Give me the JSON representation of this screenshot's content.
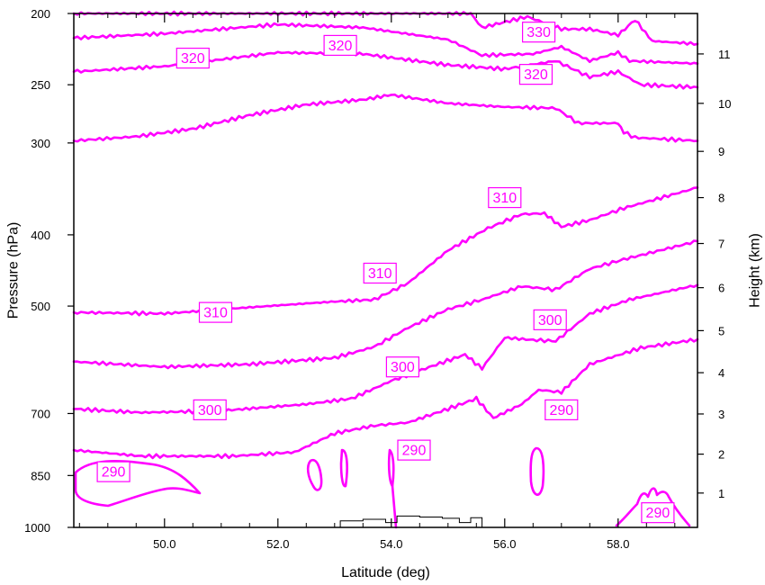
{
  "chart_data": {
    "type": "line",
    "subtype": "contour-cross-section",
    "xlabel": "Latitude (deg)",
    "ylabel": "Pressure (hPa)",
    "y2label": "Height (km)",
    "xlim": [
      48.4,
      59.4
    ],
    "ylim": [
      1000,
      200
    ],
    "yscale": "log",
    "x_ticks": [
      "50.0",
      "52.0",
      "54.0",
      "56.0",
      "58.0"
    ],
    "x_tick_values": [
      50,
      52,
      54,
      56,
      58
    ],
    "y_ticks": [
      "200",
      "250",
      "300",
      "400",
      "500",
      "700",
      "850",
      "1000"
    ],
    "y_tick_values": [
      200,
      250,
      300,
      400,
      500,
      700,
      850,
      1000
    ],
    "y2_ticks": [
      "1",
      "2",
      "3",
      "4",
      "5",
      "6",
      "7",
      "8",
      "9",
      "10",
      "11"
    ],
    "y2_tick_pressures": [
      898,
      795,
      701,
      616,
      540,
      472,
      411,
      356,
      308,
      265,
      227
    ],
    "grid": false,
    "color": "#ff00ff",
    "series": [
      {
        "values": [
          [
            48.4,
            200
          ],
          [
            52,
            200
          ],
          [
            55.4,
            200
          ],
          [
            55.6,
            209
          ],
          [
            56.4,
            202
          ],
          [
            57,
            210
          ],
          [
            57.5,
            210
          ],
          [
            58,
            214
          ],
          [
            58.3,
            204
          ],
          [
            58.6,
            218
          ],
          [
            59.4,
            220
          ]
        ]
      },
      {
        "values": [
          [
            48.4,
            216
          ],
          [
            50,
            213
          ],
          [
            52,
            207
          ],
          [
            53.5,
            209
          ],
          [
            55,
            217
          ],
          [
            55.6,
            228
          ],
          [
            56.5,
            227
          ],
          [
            57,
            222
          ],
          [
            57.5,
            232
          ],
          [
            58,
            226
          ],
          [
            58.2,
            232
          ],
          [
            59.4,
            234
          ]
        ]
      },
      {
        "values": [
          [
            48.4,
            240
          ],
          [
            50,
            236
          ],
          [
            52,
            226
          ],
          [
            53.5,
            227
          ],
          [
            55,
            235
          ],
          [
            56,
            238
          ],
          [
            56.9,
            232
          ],
          [
            57.5,
            244
          ],
          [
            58,
            240
          ],
          [
            58.4,
            250
          ],
          [
            59.4,
            252
          ]
        ]
      },
      {
        "values": [
          [
            48.4,
            298
          ],
          [
            49.5,
            294
          ],
          [
            50.5,
            287
          ],
          [
            51.5,
            275
          ],
          [
            52.5,
            266
          ],
          [
            53.5,
            262
          ],
          [
            54,
            258
          ],
          [
            55,
            265
          ],
          [
            56,
            268
          ],
          [
            56.9,
            269
          ],
          [
            57.3,
            282
          ],
          [
            58,
            282
          ],
          [
            58.1,
            290
          ],
          [
            58.3,
            295
          ],
          [
            59.4,
            298
          ]
        ]
      },
      {
        "values": [
          [
            48.4,
            510
          ],
          [
            50,
            512
          ],
          [
            51.5,
            502
          ],
          [
            53,
            493
          ],
          [
            53.7,
            490
          ],
          [
            54.3,
            465
          ],
          [
            55,
            420
          ],
          [
            55.7,
            392
          ],
          [
            56.3,
            375
          ],
          [
            56.7,
            374
          ],
          [
            57,
            390
          ],
          [
            57.5,
            382
          ],
          [
            58.1,
            368
          ],
          [
            59.4,
            345
          ]
        ]
      },
      {
        "values": [
          [
            48.4,
            595
          ],
          [
            50,
            605
          ],
          [
            51.5,
            600
          ],
          [
            53,
            588
          ],
          [
            53.7,
            568
          ],
          [
            54.3,
            535
          ],
          [
            55,
            505
          ],
          [
            55.6,
            490
          ],
          [
            56.3,
            470
          ],
          [
            56.9,
            475
          ],
          [
            57.5,
            445
          ],
          [
            58.1,
            432
          ],
          [
            59.4,
            408
          ]
        ]
      },
      {
        "values": [
          [
            48.4,
            690
          ],
          [
            49.6,
            698
          ],
          [
            51,
            694
          ],
          [
            52.5,
            680
          ],
          [
            53.3,
            668
          ],
          [
            54,
            632
          ],
          [
            54.6,
            608
          ],
          [
            55.3,
            582
          ],
          [
            55.6,
            608
          ],
          [
            56,
            552
          ],
          [
            56.5,
            556
          ],
          [
            56.9,
            558
          ],
          [
            57.5,
            512
          ],
          [
            58.2,
            490
          ],
          [
            59.4,
            468
          ]
        ]
      },
      {
        "values": [
          [
            48.4,
            785
          ],
          [
            49.6,
            800
          ],
          [
            51.2,
            800
          ],
          [
            52.3,
            790
          ],
          [
            53,
            745
          ],
          [
            53.7,
            727
          ],
          [
            54.3,
            720
          ],
          [
            55,
            690
          ],
          [
            55.5,
            668
          ],
          [
            55.8,
            710
          ],
          [
            56.3,
            680
          ],
          [
            56.6,
            650
          ],
          [
            57,
            655
          ],
          [
            57.5,
            600
          ],
          [
            58.4,
            570
          ],
          [
            59.4,
            555
          ]
        ]
      }
    ],
    "contour_labels": [
      {
        "text": "330",
        "lat": 56.6,
        "p": 212
      },
      {
        "text": "320",
        "lat": 50.5,
        "p": 230
      },
      {
        "text": "320",
        "lat": 53.1,
        "p": 221
      },
      {
        "text": "320",
        "lat": 56.55,
        "p": 242
      },
      {
        "text": "310",
        "lat": 56.0,
        "p": 356
      },
      {
        "text": "310",
        "lat": 53.8,
        "p": 451
      },
      {
        "text": "310",
        "lat": 50.9,
        "p": 510
      },
      {
        "text": "300",
        "lat": 56.8,
        "p": 522
      },
      {
        "text": "300",
        "lat": 54.2,
        "p": 605
      },
      {
        "text": "300",
        "lat": 50.8,
        "p": 692
      },
      {
        "text": "290",
        "lat": 57.0,
        "p": 692
      },
      {
        "text": "290",
        "lat": 54.4,
        "p": 785
      },
      {
        "text": "290",
        "lat": 49.1,
        "p": 840
      },
      {
        "text": "290",
        "lat": 58.7,
        "p": 955
      }
    ],
    "terrain_profile": [
      [
        51.5,
        1000
      ],
      [
        53.0,
        1000
      ],
      [
        53.1,
        980
      ],
      [
        53.5,
        975
      ],
      [
        53.9,
        985
      ],
      [
        54.1,
        965
      ],
      [
        54.5,
        968
      ],
      [
        54.9,
        972
      ],
      [
        55.2,
        985
      ],
      [
        55.4,
        970
      ],
      [
        55.6,
        1000
      ]
    ]
  }
}
